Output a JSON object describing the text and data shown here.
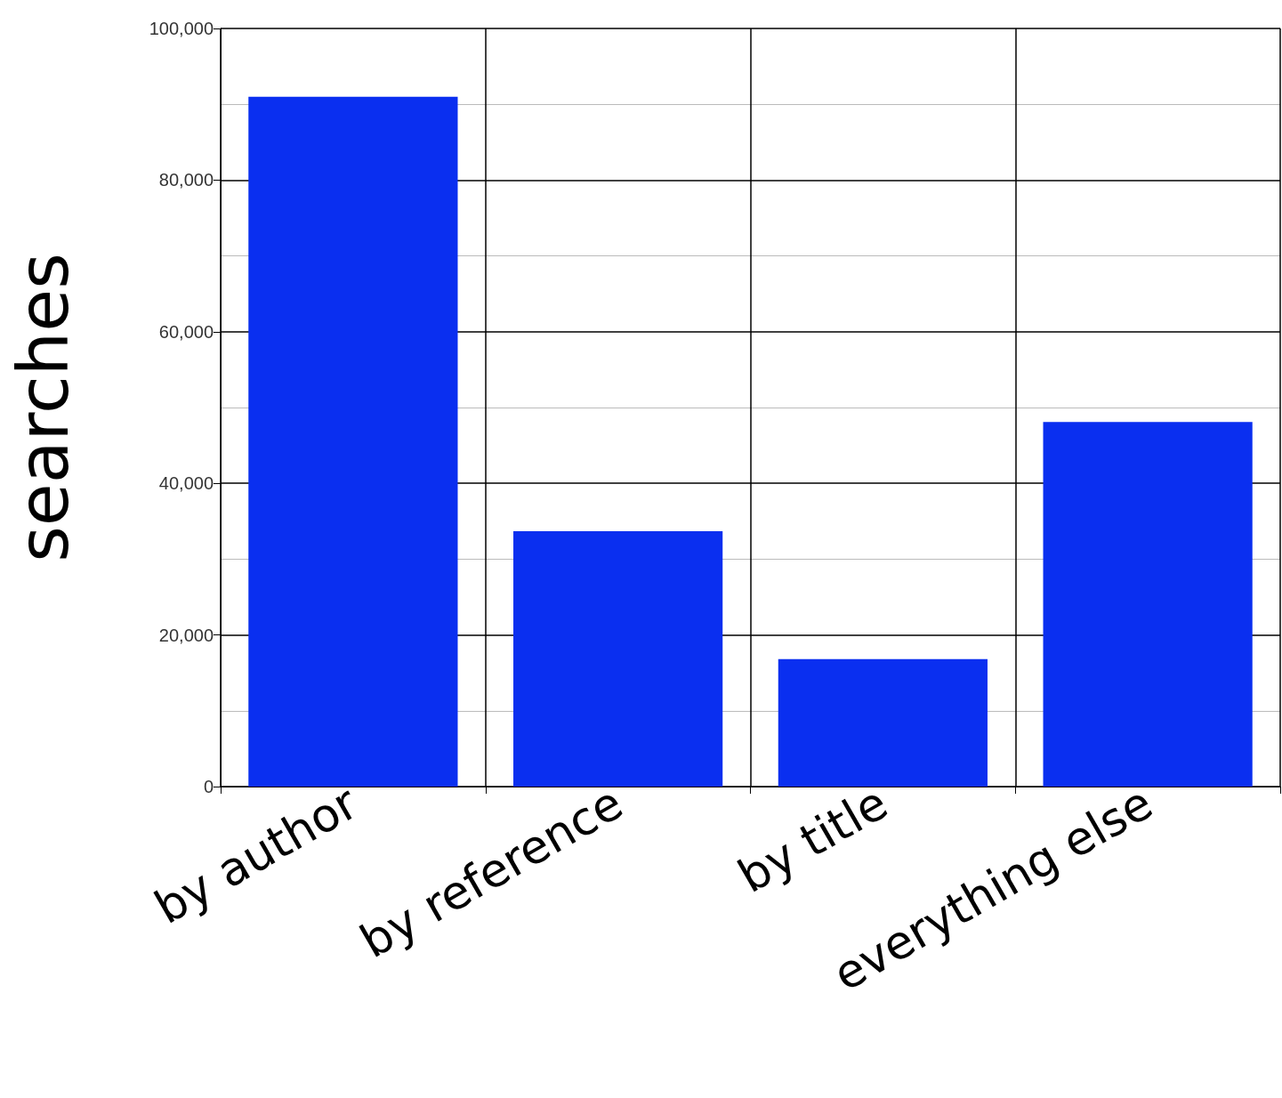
{
  "chart_data": {
    "type": "bar",
    "ylabel": "searches",
    "categories": [
      "by author",
      "by reference",
      "by title",
      "everything else"
    ],
    "values": [
      91000,
      33700,
      16800,
      48100
    ],
    "color": "#0a2ff0",
    "ylim": [
      0,
      100000
    ],
    "yticks": [
      {
        "value": 0,
        "label": "0"
      },
      {
        "value": 20000,
        "label": "20,000"
      },
      {
        "value": 40000,
        "label": "40,000"
      },
      {
        "value": 60000,
        "label": "60,000"
      },
      {
        "value": 80000,
        "label": "80,000"
      },
      {
        "value": 100000,
        "label": "100,000"
      }
    ],
    "grid": true
  }
}
